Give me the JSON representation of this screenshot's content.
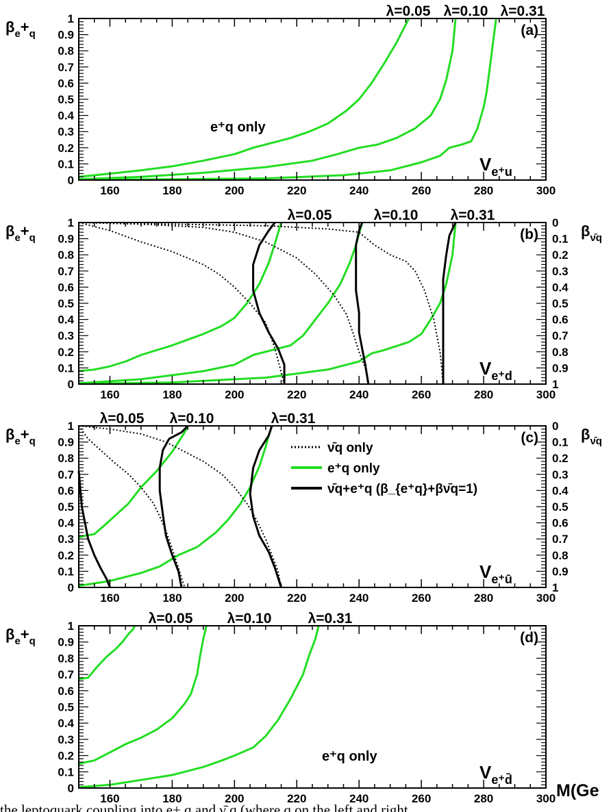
{
  "chart_data": [
    {
      "type": "line",
      "panel_label": "(a)",
      "ylabel": "β_{e+q}",
      "process_label": "V_{e+u}",
      "annotation": "e+q only",
      "xlim": [
        150,
        300
      ],
      "ylim": [
        0,
        1
      ],
      "x_ticks": [
        160,
        180,
        200,
        220,
        240,
        260,
        280,
        300
      ],
      "y_ticks": [
        0,
        0.1,
        0.2,
        0.3,
        0.4,
        0.5,
        0.6,
        0.7,
        0.8,
        0.9,
        1
      ],
      "lambda_labels": [
        "λ=0.05",
        "λ=0.10",
        "λ=0.31"
      ],
      "series": [
        {
          "type": "e+q",
          "x": [
            150,
            160,
            170,
            180,
            190,
            200,
            206,
            212,
            218,
            224,
            230,
            236,
            240,
            244,
            248,
            252,
            256
          ],
          "y": [
            0.02,
            0.04,
            0.06,
            0.085,
            0.12,
            0.16,
            0.2,
            0.23,
            0.26,
            0.3,
            0.35,
            0.43,
            0.5,
            0.6,
            0.72,
            0.85,
            1.0
          ]
        },
        {
          "type": "e+q",
          "x": [
            150,
            170,
            190,
            210,
            225,
            233,
            240,
            246,
            252,
            258,
            263,
            266,
            268,
            270,
            271
          ],
          "y": [
            0.005,
            0.02,
            0.045,
            0.08,
            0.12,
            0.16,
            0.2,
            0.22,
            0.26,
            0.32,
            0.4,
            0.5,
            0.62,
            0.8,
            1.0
          ]
        },
        {
          "type": "e+q",
          "x": [
            150,
            180,
            210,
            235,
            250,
            260,
            266,
            269,
            273,
            276,
            278,
            280,
            281,
            282,
            283,
            284
          ],
          "y": [
            0.002,
            0.005,
            0.01,
            0.03,
            0.06,
            0.11,
            0.15,
            0.2,
            0.22,
            0.24,
            0.32,
            0.45,
            0.55,
            0.7,
            0.85,
            1.0
          ]
        }
      ]
    },
    {
      "type": "line",
      "panel_label": "(b)",
      "ylabel": "β_{e+q}",
      "ylabel_right": "β_{ν̄q}",
      "process_label": "V_{e+d}",
      "xlim": [
        150,
        300
      ],
      "ylim": [
        0,
        1
      ],
      "x_ticks": [
        160,
        180,
        200,
        220,
        240,
        260,
        280,
        300
      ],
      "y_ticks": [
        0,
        0.1,
        0.2,
        0.3,
        0.4,
        0.5,
        0.6,
        0.7,
        0.8,
        0.9,
        1
      ],
      "y_ticks_right": [
        0,
        0.1,
        0.2,
        0.3,
        0.4,
        0.5,
        0.6,
        0.7,
        0.8,
        0.9,
        1
      ],
      "lambda_labels": [
        "λ=0.05",
        "λ=0.10",
        "λ=0.31"
      ],
      "series": [
        {
          "type": "e+q",
          "x": [
            150,
            155,
            160,
            165,
            170,
            180,
            190,
            196,
            200,
            204,
            208,
            211,
            213,
            215
          ],
          "y": [
            0.08,
            0.09,
            0.11,
            0.14,
            0.18,
            0.24,
            0.31,
            0.36,
            0.41,
            0.5,
            0.62,
            0.75,
            0.87,
            1.0
          ]
        },
        {
          "type": "e+q",
          "x": [
            150,
            170,
            190,
            200,
            206,
            212,
            218,
            222,
            226,
            230,
            234,
            237,
            239,
            241
          ],
          "y": [
            0.005,
            0.03,
            0.08,
            0.12,
            0.18,
            0.21,
            0.24,
            0.3,
            0.4,
            0.5,
            0.62,
            0.75,
            0.86,
            1.0
          ]
        },
        {
          "type": "e+q",
          "x": [
            150,
            180,
            210,
            230,
            240,
            244,
            248,
            256,
            260,
            263,
            266,
            268,
            270,
            271
          ],
          "y": [
            0.002,
            0.01,
            0.04,
            0.09,
            0.14,
            0.19,
            0.21,
            0.26,
            0.31,
            0.4,
            0.5,
            0.62,
            0.8,
            1.0
          ]
        },
        {
          "type": "ν̄q",
          "x": [
            150,
            160,
            170,
            180,
            190,
            195,
            200,
            205,
            210,
            213,
            216
          ],
          "y": [
            1.0,
            0.95,
            0.88,
            0.82,
            0.74,
            0.68,
            0.6,
            0.5,
            0.38,
            0.22,
            0.0
          ]
        },
        {
          "type": "ν̄q",
          "x": [
            150,
            170,
            190,
            200,
            210,
            220,
            226,
            232,
            236,
            238,
            240,
            242,
            243
          ],
          "y": [
            1.0,
            0.99,
            0.97,
            0.94,
            0.88,
            0.78,
            0.68,
            0.55,
            0.43,
            0.32,
            0.2,
            0.1,
            0.0
          ]
        },
        {
          "type": "ν̄q",
          "x": [
            150,
            180,
            210,
            230,
            240,
            245,
            250,
            255,
            258,
            261,
            264,
            266,
            267
          ],
          "y": [
            1.0,
            0.99,
            0.98,
            0.96,
            0.94,
            0.86,
            0.8,
            0.76,
            0.7,
            0.58,
            0.4,
            0.2,
            0.0
          ]
        },
        {
          "type": "ν̄q+e+q",
          "x": [
            213,
            211,
            208,
            206,
            206,
            208,
            211,
            214,
            216,
            216
          ],
          "y": [
            1.0,
            0.95,
            0.86,
            0.74,
            0.58,
            0.44,
            0.32,
            0.22,
            0.12,
            0.0
          ]
        },
        {
          "type": "ν̄q+e+q",
          "x": [
            241,
            240,
            239,
            239,
            239,
            240,
            240,
            241,
            242,
            243
          ],
          "y": [
            1.0,
            0.95,
            0.86,
            0.74,
            0.58,
            0.44,
            0.32,
            0.22,
            0.12,
            0.0
          ]
        },
        {
          "type": "ν̄q+e+q",
          "x": [
            271,
            269,
            268,
            267,
            267,
            267,
            267,
            267,
            267
          ],
          "y": [
            1.0,
            0.92,
            0.8,
            0.65,
            0.5,
            0.35,
            0.2,
            0.08,
            0.0
          ]
        }
      ]
    },
    {
      "type": "line",
      "panel_label": "(c)",
      "ylabel": "β_{e+q}",
      "ylabel_right": "β_{ν̄q}",
      "process_label": "V_{e+ū}",
      "xlim": [
        150,
        300
      ],
      "ylim": [
        0,
        1
      ],
      "x_ticks": [
        160,
        180,
        200,
        220,
        240,
        260,
        280,
        300
      ],
      "y_ticks": [
        0,
        0.1,
        0.2,
        0.3,
        0.4,
        0.5,
        0.6,
        0.7,
        0.8,
        0.9,
        1
      ],
      "y_ticks_right": [
        0,
        0.1,
        0.2,
        0.3,
        0.4,
        0.5,
        0.6,
        0.7,
        0.8,
        0.9,
        1
      ],
      "lambda_labels": [
        "λ=0.05",
        "λ=0.10",
        "λ=0.31"
      ],
      "legend": [
        {
          "style": "dotted",
          "label": "ν̄q only"
        },
        {
          "style": "green",
          "label": "e+q only"
        },
        {
          "style": "black",
          "label": "ν̄q+e+q (β_{e+q}+β_{ν̄q}=1)"
        }
      ],
      "series": [
        {
          "type": "e+q",
          "x": [
            150,
            152,
            155,
            158,
            162,
            166,
            170,
            175,
            180,
            182,
            184,
            185
          ],
          "y": [
            0.31,
            0.32,
            0.33,
            0.38,
            0.45,
            0.52,
            0.62,
            0.72,
            0.84,
            0.9,
            0.96,
            1.0
          ]
        },
        {
          "type": "e+q",
          "x": [
            150,
            160,
            170,
            176,
            182,
            188,
            194,
            198,
            202,
            205,
            208,
            210,
            211,
            212
          ],
          "y": [
            0.01,
            0.04,
            0.09,
            0.13,
            0.2,
            0.25,
            0.34,
            0.42,
            0.52,
            0.62,
            0.75,
            0.87,
            0.94,
            1.0
          ]
        },
        {
          "type": "ν̄q",
          "x": [
            150,
            153,
            157,
            161,
            166,
            170,
            174,
            176,
            178,
            180,
            182,
            184
          ],
          "y": [
            1.0,
            0.92,
            0.85,
            0.78,
            0.7,
            0.62,
            0.52,
            0.44,
            0.35,
            0.24,
            0.12,
            0.0
          ]
        },
        {
          "type": "ν̄q",
          "x": [
            150,
            160,
            170,
            178,
            184,
            190,
            196,
            200,
            204,
            207,
            210,
            212,
            214,
            215
          ],
          "y": [
            1.0,
            0.98,
            0.95,
            0.9,
            0.84,
            0.78,
            0.7,
            0.62,
            0.52,
            0.42,
            0.3,
            0.2,
            0.1,
            0.0
          ]
        },
        {
          "type": "ν̄q+e+q",
          "x": [
            150,
            150.5,
            151,
            152,
            153,
            155,
            157,
            159,
            160
          ],
          "y": [
            0.72,
            0.6,
            0.5,
            0.4,
            0.3,
            0.2,
            0.12,
            0.05,
            0.0
          ]
        },
        {
          "type": "ν̄q+e+q",
          "x": [
            185,
            183,
            179,
            177,
            176,
            176,
            177,
            178,
            180,
            182,
            183
          ],
          "y": [
            1.0,
            0.96,
            0.92,
            0.85,
            0.74,
            0.6,
            0.45,
            0.32,
            0.2,
            0.1,
            0.0
          ]
        },
        {
          "type": "ν̄q+e+q",
          "x": [
            212,
            211,
            208,
            206,
            205,
            206,
            208,
            211,
            213,
            215
          ],
          "y": [
            1.0,
            0.94,
            0.85,
            0.74,
            0.58,
            0.44,
            0.32,
            0.22,
            0.12,
            0.0
          ]
        }
      ]
    },
    {
      "type": "line",
      "panel_label": "(d)",
      "ylabel": "β_{e+q}",
      "process_label": "V_{e+d̄}",
      "annotation": "e+q only",
      "xlabel": "M(Ge",
      "xlim": [
        150,
        300
      ],
      "ylim": [
        0,
        1
      ],
      "x_ticks": [
        160,
        180,
        200,
        220,
        240,
        260,
        280,
        300
      ],
      "y_ticks": [
        0,
        0.1,
        0.2,
        0.3,
        0.4,
        0.5,
        0.6,
        0.7,
        0.8,
        0.9,
        1
      ],
      "lambda_labels": [
        "λ=0.05",
        "λ=0.10",
        "λ=0.31"
      ],
      "series": [
        {
          "type": "e+q",
          "x": [
            150,
            153,
            156,
            159,
            162,
            164,
            166,
            167.5,
            168
          ],
          "y": [
            0.67,
            0.68,
            0.75,
            0.81,
            0.86,
            0.9,
            0.95,
            0.98,
            1.0
          ]
        },
        {
          "type": "e+q",
          "x": [
            150,
            155,
            160,
            165,
            170,
            175,
            180,
            184,
            186,
            188,
            189,
            190,
            191
          ],
          "y": [
            0.15,
            0.17,
            0.22,
            0.27,
            0.31,
            0.36,
            0.43,
            0.52,
            0.58,
            0.7,
            0.82,
            0.92,
            1.0
          ]
        },
        {
          "type": "e+q",
          "x": [
            150,
            160,
            170,
            180,
            190,
            196,
            200,
            206,
            210,
            214,
            218,
            222,
            224,
            226,
            227
          ],
          "y": [
            0.005,
            0.02,
            0.05,
            0.08,
            0.13,
            0.17,
            0.2,
            0.25,
            0.32,
            0.42,
            0.55,
            0.7,
            0.82,
            0.92,
            1.0
          ]
        }
      ]
    }
  ],
  "page_footer": "the leptoquark coupling into e+ q and ν̄ q (where q on the left and right"
}
